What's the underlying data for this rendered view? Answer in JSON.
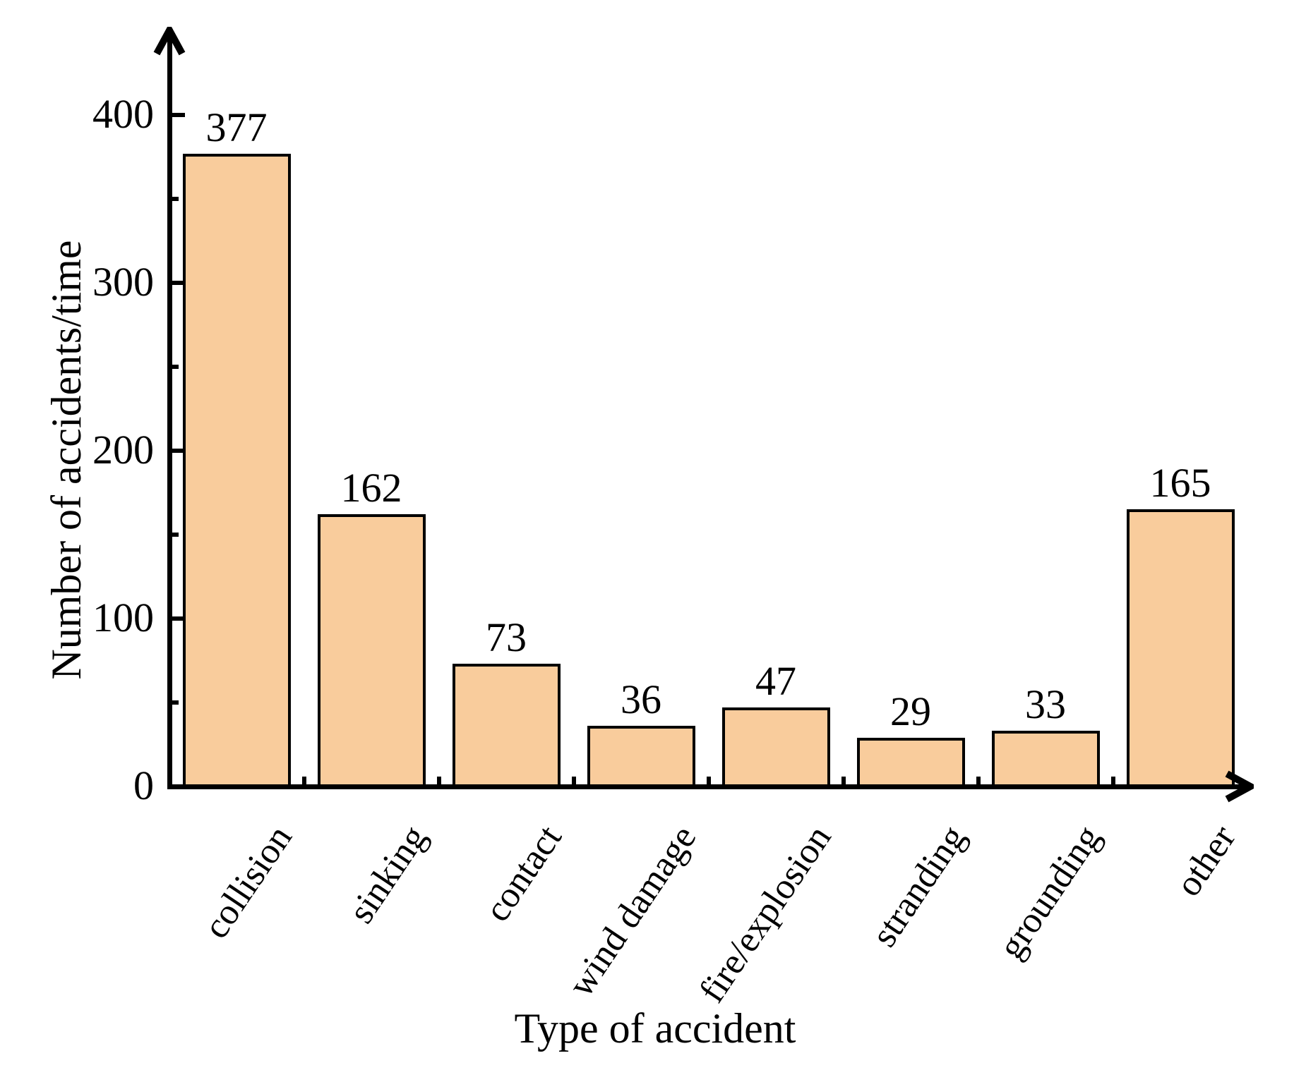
{
  "chart_data": {
    "type": "bar",
    "categories": [
      "collision",
      "sinking",
      "contact",
      "wind damage",
      "fire/explosion",
      "stranding",
      "grounding",
      "other"
    ],
    "values": [
      377,
      162,
      73,
      36,
      47,
      29,
      33,
      165
    ],
    "value_labels": [
      "377",
      "162",
      "73",
      "36",
      "47",
      "29",
      "33",
      "165"
    ],
    "title": "",
    "xlabel": "Type of accident",
    "ylabel": "Number of accidents/time",
    "ylim": [
      0,
      450
    ],
    "y_major_ticks": [
      0,
      100,
      200,
      300,
      400
    ],
    "y_minor_ticks": [
      50,
      150,
      250,
      350
    ],
    "grid": false,
    "legend": "none",
    "category_label_rotation_deg": -56,
    "bar_fill_color": "#F9CC9C",
    "bar_border_color": "#000000",
    "axis_color": "#000000",
    "text_color": "#000000",
    "background_color": "#FFFFFF"
  }
}
